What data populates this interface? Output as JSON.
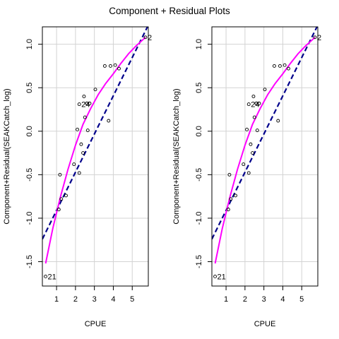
{
  "title": "Component + Residual Plots",
  "chart_data": [
    {
      "type": "scatter",
      "xlabel": "CPUE",
      "ylabel": "Component+Residual(SEAKCatch_log)",
      "xlim": [
        0.25,
        5.85
      ],
      "ylim": [
        -1.78,
        1.2
      ],
      "xticks": [
        1,
        2,
        3,
        4,
        5
      ],
      "yticks": [
        -1.5,
        -1.0,
        -0.5,
        0.0,
        0.5,
        1.0
      ],
      "ytick_labels": [
        "-1.5",
        "-1.0",
        "-0.5",
        "0.0",
        "0.5",
        "1.0"
      ],
      "grid": true,
      "points": [
        {
          "x": 0.42,
          "y": -1.67
        },
        {
          "x": 1.12,
          "y": -0.9
        },
        {
          "x": 1.18,
          "y": -0.5
        },
        {
          "x": 1.25,
          "y": -0.78
        },
        {
          "x": 1.5,
          "y": -0.74
        },
        {
          "x": 1.92,
          "y": -0.38
        },
        {
          "x": 2.1,
          "y": 0.02
        },
        {
          "x": 2.2,
          "y": 0.31
        },
        {
          "x": 2.2,
          "y": -0.48
        },
        {
          "x": 2.3,
          "y": -0.15
        },
        {
          "x": 2.4,
          "y": -0.25
        },
        {
          "x": 2.45,
          "y": 0.4
        },
        {
          "x": 2.5,
          "y": 0.16
        },
        {
          "x": 2.6,
          "y": 0.32
        },
        {
          "x": 2.65,
          "y": 0.01
        },
        {
          "x": 2.75,
          "y": 0.32
        },
        {
          "x": 3.05,
          "y": 0.48
        },
        {
          "x": 3.55,
          "y": 0.75
        },
        {
          "x": 3.75,
          "y": 0.12
        },
        {
          "x": 3.85,
          "y": 0.75
        },
        {
          "x": 4.1,
          "y": 0.76
        },
        {
          "x": 4.3,
          "y": 0.72
        },
        {
          "x": 5.7,
          "y": 1.08
        }
      ],
      "point_labels": [
        {
          "text": "21",
          "x": 0.42,
          "y": -1.67
        },
        {
          "text": "24",
          "x": 2.2,
          "y": 0.31
        },
        {
          "text": "2",
          "x": 5.7,
          "y": 1.08
        }
      ],
      "linear_fit": {
        "x": [
          0.25,
          5.85
        ],
        "y": [
          -1.24,
          1.22
        ],
        "color": "#00008b",
        "style": "dashed"
      },
      "smooth_fit": {
        "x": [
          0.42,
          0.8,
          1.2,
          1.6,
          2.0,
          2.4,
          2.8,
          3.2,
          3.6,
          4.0,
          4.4,
          4.8,
          5.2,
          5.7
        ],
        "y": [
          -1.52,
          -1.12,
          -0.76,
          -0.44,
          -0.16,
          0.08,
          0.26,
          0.42,
          0.55,
          0.66,
          0.78,
          0.89,
          0.98,
          1.08
        ],
        "color": "#ff00ff"
      }
    },
    {
      "type": "scatter",
      "xlabel": "CPUE",
      "ylabel": "Component+Residual(SEAKCatch_log)",
      "xlim": [
        0.25,
        5.85
      ],
      "ylim": [
        -1.78,
        1.2
      ],
      "xticks": [
        1,
        2,
        3,
        4,
        5
      ],
      "yticks": [
        -1.5,
        -1.0,
        -0.5,
        0.0,
        0.5,
        1.0
      ],
      "ytick_labels": [
        "-1.5",
        "-1.0",
        "-0.5",
        "0.0",
        "0.5",
        "1.0"
      ],
      "grid": true,
      "points": [
        {
          "x": 0.42,
          "y": -1.67
        },
        {
          "x": 1.12,
          "y": -0.9
        },
        {
          "x": 1.18,
          "y": -0.5
        },
        {
          "x": 1.25,
          "y": -0.78
        },
        {
          "x": 1.5,
          "y": -0.74
        },
        {
          "x": 1.92,
          "y": -0.38
        },
        {
          "x": 2.1,
          "y": 0.02
        },
        {
          "x": 2.2,
          "y": 0.31
        },
        {
          "x": 2.2,
          "y": -0.48
        },
        {
          "x": 2.3,
          "y": -0.15
        },
        {
          "x": 2.4,
          "y": -0.25
        },
        {
          "x": 2.45,
          "y": 0.4
        },
        {
          "x": 2.5,
          "y": 0.16
        },
        {
          "x": 2.6,
          "y": 0.32
        },
        {
          "x": 2.65,
          "y": 0.01
        },
        {
          "x": 2.75,
          "y": 0.32
        },
        {
          "x": 3.05,
          "y": 0.48
        },
        {
          "x": 3.55,
          "y": 0.75
        },
        {
          "x": 3.75,
          "y": 0.12
        },
        {
          "x": 3.85,
          "y": 0.75
        },
        {
          "x": 4.1,
          "y": 0.76
        },
        {
          "x": 4.3,
          "y": 0.72
        },
        {
          "x": 5.7,
          "y": 1.08
        }
      ],
      "point_labels": [
        {
          "text": "21",
          "x": 0.42,
          "y": -1.67
        },
        {
          "text": "24",
          "x": 2.2,
          "y": 0.31
        },
        {
          "text": "2",
          "x": 5.7,
          "y": 1.08
        }
      ],
      "linear_fit": {
        "x": [
          0.25,
          5.85
        ],
        "y": [
          -1.24,
          1.22
        ],
        "color": "#00008b",
        "style": "dashed"
      },
      "smooth_fit": {
        "x": [
          0.42,
          0.8,
          1.2,
          1.6,
          2.0,
          2.4,
          2.8,
          3.2,
          3.6,
          4.0,
          4.4,
          4.8,
          5.2,
          5.7
        ],
        "y": [
          -1.52,
          -1.12,
          -0.76,
          -0.44,
          -0.16,
          0.08,
          0.26,
          0.42,
          0.55,
          0.66,
          0.78,
          0.89,
          0.98,
          1.08
        ],
        "color": "#ff00ff"
      }
    }
  ]
}
